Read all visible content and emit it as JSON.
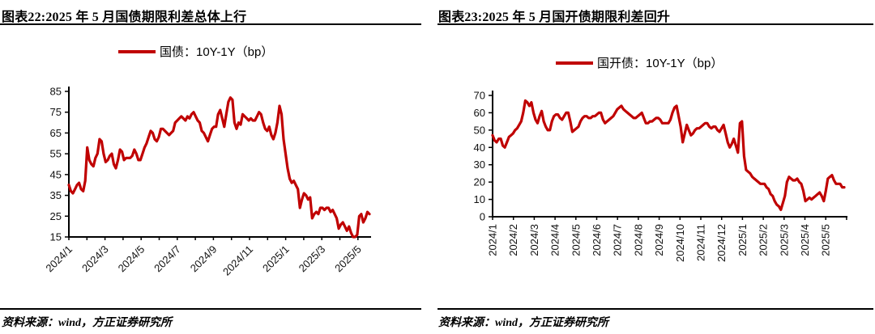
{
  "accent_color": "#c00000",
  "panels": [
    {
      "title": "图表22:2025 年 5 月国债期限利差总体上行",
      "legend_label": "国债：10Y-1Y（bp）",
      "source": "资料来源：wind，方正证券研究所"
    },
    {
      "title": "图表23:2025 年 5 月国开债期限利差回升",
      "legend_label": "国开债：10Y-1Y（bp）",
      "source": "资料来源：wind，方正证券研究所"
    }
  ],
  "chart_data": [
    {
      "type": "line",
      "title": "图表22:2025 年 5 月国债期限利差总体上行",
      "xlabel": "",
      "ylabel": "",
      "unit": "bp",
      "ylim": [
        15,
        85
      ],
      "y_ticks": [
        85,
        75,
        65,
        55,
        45,
        35,
        25,
        15
      ],
      "x_range": [
        "2024/1",
        "2025/5"
      ],
      "x_tick_labels": [
        "2024/1",
        "2024/3",
        "2024/5",
        "2024/7",
        "2024/9",
        "2024/11",
        "2025/1",
        "2025/3",
        "2025/5"
      ],
      "x_minor_tick_every_month": true,
      "grid": false,
      "legend_position": "top",
      "series": [
        {
          "name": "国债：10Y-1Y（bp）",
          "color": "#c00000",
          "values": [
            40,
            37,
            36,
            38,
            40,
            41,
            38,
            37,
            42,
            58,
            52,
            50,
            49,
            53,
            55,
            62,
            61,
            55,
            51,
            52,
            54,
            55,
            50,
            48,
            52,
            57,
            56,
            52,
            53,
            53,
            53,
            54,
            57,
            55,
            52,
            52,
            55,
            58,
            60,
            63,
            66,
            65,
            62,
            61,
            63,
            67,
            67,
            66,
            65,
            64,
            65,
            66,
            70,
            71,
            72,
            73,
            72,
            71,
            73,
            72,
            74,
            75,
            73,
            71,
            70,
            66,
            65,
            63,
            61,
            64,
            67,
            68,
            68,
            74,
            76,
            72,
            68,
            74,
            80,
            82,
            81,
            70,
            67,
            70,
            69,
            74,
            73,
            72,
            71,
            72,
            71,
            71,
            73,
            75,
            74,
            70,
            67,
            66,
            68,
            64,
            62,
            65,
            70,
            78,
            74,
            62,
            55,
            48,
            43,
            41,
            42,
            40,
            38,
            29,
            33,
            36,
            35,
            33,
            34,
            24,
            26,
            27,
            26,
            29,
            29,
            28,
            29,
            29,
            27,
            28,
            26,
            24,
            19,
            21,
            22,
            20,
            18,
            20,
            17,
            15,
            15,
            16,
            25,
            26,
            22,
            24,
            27,
            26
          ]
        }
      ]
    },
    {
      "type": "line",
      "title": "图表23:2025 年 5 月国开债期限利差回升",
      "xlabel": "",
      "ylabel": "",
      "unit": "bp",
      "ylim": [
        0,
        70
      ],
      "y_ticks": [
        70,
        60,
        50,
        40,
        30,
        20,
        10,
        0
      ],
      "x_range": [
        "2024/1",
        "2025/5"
      ],
      "x_tick_labels": [
        "2024/1",
        "2024/2",
        "2024/3",
        "2024/4",
        "2024/5",
        "2024/6",
        "2024/7",
        "2024/8",
        "2024/9",
        "2024/10",
        "2024/11",
        "2024/12",
        "2025/1",
        "2025/2",
        "2025/3",
        "2025/4",
        "2025/5"
      ],
      "x_minor_tick_every_month": true,
      "grid": false,
      "legend_position": "top",
      "series": [
        {
          "name": "国开债：10Y-1Y（bp）",
          "color": "#c00000",
          "values": [
            47,
            44,
            43,
            45,
            45,
            41,
            40,
            43,
            46,
            47,
            48,
            50,
            51,
            53,
            55,
            60,
            67,
            66,
            64,
            66,
            60,
            56,
            54,
            58,
            61,
            55,
            52,
            50,
            50,
            55,
            58,
            59,
            59,
            57,
            56,
            58,
            60,
            60,
            55,
            49,
            50,
            51,
            52,
            55,
            57,
            58,
            58,
            57,
            57,
            58,
            58,
            59,
            60,
            60,
            56,
            54,
            55,
            56,
            57,
            58,
            60,
            62,
            63,
            64,
            62,
            61,
            60,
            59,
            58,
            57,
            57,
            58,
            59,
            60,
            57,
            54,
            54,
            55,
            55,
            56,
            57,
            57,
            56,
            54,
            54,
            54,
            54,
            56,
            60,
            63,
            64,
            58,
            52,
            43,
            48,
            53,
            50,
            47,
            48,
            50,
            51,
            51,
            52,
            53,
            54,
            54,
            52,
            51,
            52,
            52,
            50,
            49,
            51,
            53,
            48,
            43,
            40,
            42,
            45,
            41,
            37,
            54,
            55,
            35,
            27,
            26,
            25,
            23,
            22,
            21,
            20,
            19,
            19,
            19,
            17,
            16,
            13,
            12,
            9,
            7,
            6,
            4,
            8,
            12,
            20,
            23,
            22,
            21,
            21,
            22,
            20,
            19,
            15,
            9,
            10,
            11,
            10,
            11,
            12,
            13,
            14,
            12,
            9,
            15,
            22,
            23,
            24,
            21,
            19,
            19,
            19,
            17,
            17
          ]
        }
      ]
    }
  ]
}
